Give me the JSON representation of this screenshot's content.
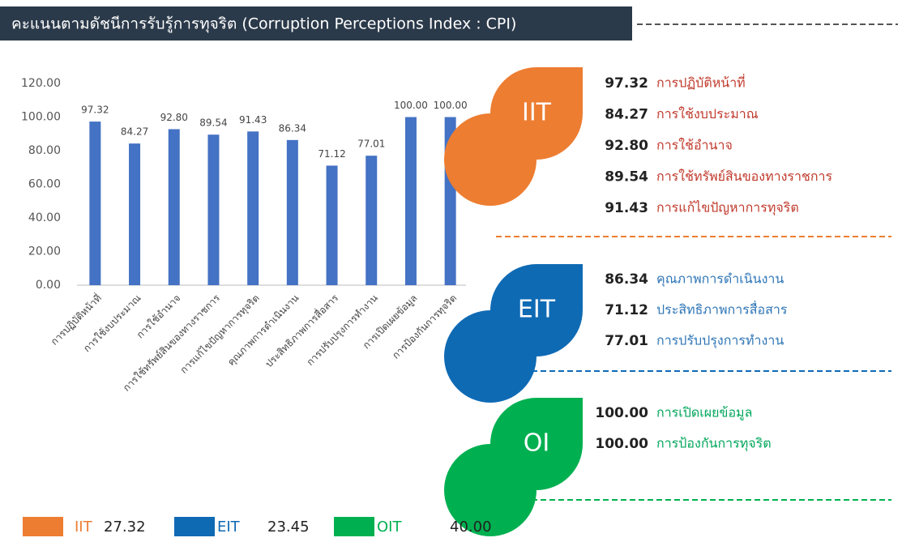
{
  "chart_data": {
    "type": "bar",
    "title": "คะแนนตามดัชนีการรับรู้การทุจริต (Corruption Perceptions Index : CPI)",
    "categories": [
      "การปฏิบัติหน้าที่",
      "การใช้งบประมาณ",
      "การใช้อำนาจ",
      "การใช้ทรัพย์สินของทางราชการ",
      "การแก้ไขปัญหาการทุจริต",
      "คุณภาพการดำเนินงาน",
      "ประสิทธิภาพการสื่อสาร",
      "การปรับปรุงการทำงาน",
      "การเปิดเผยข้อมูล",
      "การป้องกันการทุจริต"
    ],
    "values": [
      97.32,
      84.27,
      92.8,
      89.54,
      91.43,
      86.34,
      71.12,
      77.01,
      100,
      100
    ],
    "value_labels": [
      "97.32",
      "84.27",
      "92.80",
      "89.54",
      "91.43",
      "86.34",
      "71.12",
      "77.01",
      "100.00",
      "100.00"
    ],
    "color": "#4472c4",
    "ylim": [
      0,
      120
    ],
    "yticks": [
      {
        "value": 0,
        "label": "0.00"
      },
      {
        "value": 20,
        "label": "20.00"
      },
      {
        "value": 40,
        "label": "40.00"
      },
      {
        "value": 60,
        "label": "60.00"
      },
      {
        "value": 80,
        "label": "80.00"
      },
      {
        "value": 100,
        "label": "100.00"
      },
      {
        "value": 120,
        "label": "120.00"
      }
    ],
    "grid": false
  },
  "panel": [
    {
      "name": "IIT",
      "color": "#ed7d31",
      "text_color": "#c0392b",
      "items": [
        {
          "score": "97.32",
          "label": "การปฏิบัติหน้าที่"
        },
        {
          "score": "84.27",
          "label": "การใช้งบประมาณ"
        },
        {
          "score": "92.80",
          "label": "การใช้อำนาจ"
        },
        {
          "score": "89.54",
          "label": "การใช้ทรัพย์สินของทางราชการ"
        },
        {
          "score": "91.43",
          "label": "การแก้ไขปัญหาการทุจริต"
        }
      ]
    },
    {
      "name": "EIT",
      "color": "#0f6ab4",
      "text_color": "#2e75b6",
      "items": [
        {
          "score": "86.34",
          "label": "คุณภาพการดำเนินงาน"
        },
        {
          "score": "71.12",
          "label": "ประสิทธิภาพการสื่อสาร"
        },
        {
          "score": "77.01",
          "label": "การปรับปรุงการทำงาน"
        }
      ]
    },
    {
      "name": "OI",
      "color": "#00b050",
      "text_color": "#00a65a",
      "items": [
        {
          "score": "100.00",
          "label": "การเปิดเผยข้อมูล"
        },
        {
          "score": "100.00",
          "label": "การป้องกันการทุจริต"
        }
      ]
    }
  ],
  "legend": [
    {
      "name": "IIT",
      "score": "27.32",
      "color": "#ed7d31"
    },
    {
      "name": "EIT",
      "score": "23.45",
      "color": "#0f6ab4"
    },
    {
      "name": "OIT",
      "score": "40.00",
      "color": "#00b050"
    }
  ]
}
